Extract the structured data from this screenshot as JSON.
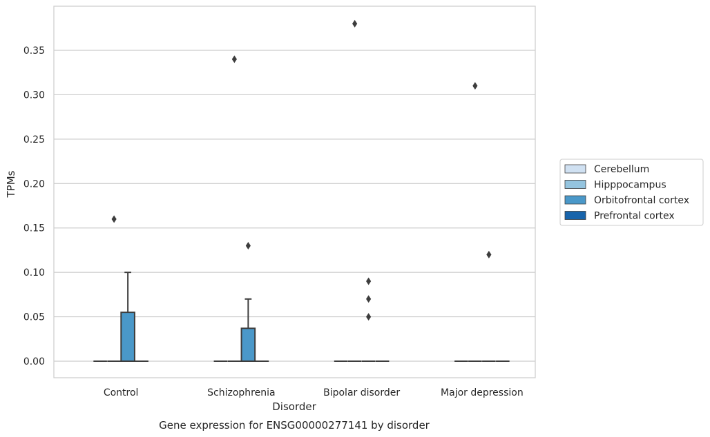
{
  "chart_data": {
    "type": "box",
    "title": "",
    "xlabel": "Disorder",
    "ylabel": "TPMs",
    "caption": "Gene expression for ENSG00000277141 by disorder",
    "ylim": [
      -0.018,
      0.398
    ],
    "yticks": [
      "0.00",
      "0.05",
      "0.10",
      "0.15",
      "0.20",
      "0.25",
      "0.30",
      "0.35"
    ],
    "grid": "horizontal",
    "legend_placement": "right",
    "categories": [
      "Control",
      "Schizophrenia",
      "Bipolar disorder",
      "Major depression"
    ],
    "series": [
      {
        "name": "Cerebellum",
        "color": "#d0e1f2",
        "boxes": [
          {
            "q1": 0,
            "median": 0,
            "q3": 0,
            "whisker_low": 0,
            "whisker_high": 0,
            "outliers": []
          },
          {
            "q1": 0,
            "median": 0,
            "q3": 0,
            "whisker_low": 0,
            "whisker_high": 0,
            "outliers": []
          },
          {
            "q1": 0,
            "median": 0,
            "q3": 0,
            "whisker_low": 0,
            "whisker_high": 0,
            "outliers": []
          },
          {
            "q1": 0,
            "median": 0,
            "q3": 0,
            "whisker_low": 0,
            "whisker_high": 0,
            "outliers": []
          }
        ]
      },
      {
        "name": "Hipppocampus",
        "color": "#94c4df",
        "boxes": [
          {
            "q1": 0,
            "median": 0,
            "q3": 0,
            "whisker_low": 0,
            "whisker_high": 0,
            "outliers": [
              0.16
            ]
          },
          {
            "q1": 0,
            "median": 0,
            "q3": 0,
            "whisker_low": 0,
            "whisker_high": 0,
            "outliers": [
              0.34
            ]
          },
          {
            "q1": 0,
            "median": 0,
            "q3": 0,
            "whisker_low": 0,
            "whisker_high": 0,
            "outliers": [
              0.38
            ]
          },
          {
            "q1": 0,
            "median": 0,
            "q3": 0,
            "whisker_low": 0,
            "whisker_high": 0,
            "outliers": [
              0.31
            ]
          }
        ]
      },
      {
        "name": "Orbitofrontal cortex",
        "color": "#4a98c9",
        "boxes": [
          {
            "q1": 0,
            "median": 0,
            "q3": 0.055,
            "whisker_low": 0,
            "whisker_high": 0.1,
            "outliers": []
          },
          {
            "q1": 0,
            "median": 0,
            "q3": 0.037,
            "whisker_low": 0,
            "whisker_high": 0.07,
            "outliers": [
              0.13
            ]
          },
          {
            "q1": 0,
            "median": 0,
            "q3": 0,
            "whisker_low": 0,
            "whisker_high": 0,
            "outliers": [
              0.05,
              0.07,
              0.09
            ]
          },
          {
            "q1": 0,
            "median": 0,
            "q3": 0,
            "whisker_low": 0,
            "whisker_high": 0,
            "outliers": [
              0.12
            ]
          }
        ]
      },
      {
        "name": "Prefrontal cortex",
        "color": "#1764ab",
        "boxes": [
          {
            "q1": 0,
            "median": 0,
            "q3": 0,
            "whisker_low": 0,
            "whisker_high": 0,
            "outliers": []
          },
          {
            "q1": 0,
            "median": 0,
            "q3": 0,
            "whisker_low": 0,
            "whisker_high": 0,
            "outliers": []
          },
          {
            "q1": 0,
            "median": 0,
            "q3": 0,
            "whisker_low": 0,
            "whisker_high": 0,
            "outliers": []
          },
          {
            "q1": 0,
            "median": 0,
            "q3": 0,
            "whisker_low": 0,
            "whisker_high": 0,
            "outliers": []
          }
        ]
      }
    ]
  }
}
